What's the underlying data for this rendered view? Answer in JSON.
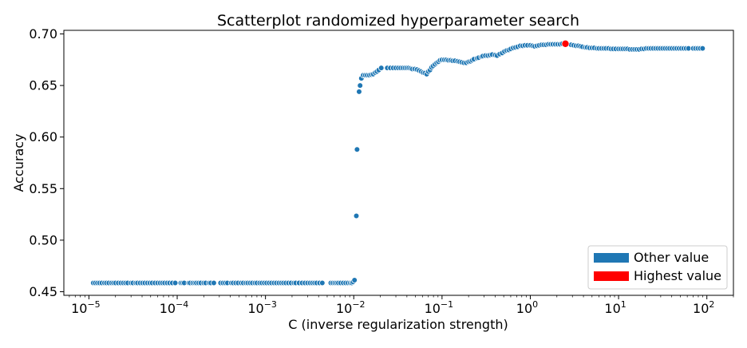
{
  "chart_data": {
    "type": "scatter",
    "title": "Scatterplot randomized hyperparameter search",
    "xlabel": "C (inverse regularization strength)",
    "ylabel": "Accuracy",
    "x_scale": "log",
    "xlim": [
      5.2e-06,
      200
    ],
    "ylim": [
      0.4465,
      0.7035
    ],
    "x_ticks": [
      {
        "value": 1e-05,
        "base": "10",
        "exp": "−5"
      },
      {
        "value": 0.0001,
        "base": "10",
        "exp": "−4"
      },
      {
        "value": 0.001,
        "base": "10",
        "exp": "−3"
      },
      {
        "value": 0.01,
        "base": "10",
        "exp": "−2"
      },
      {
        "value": 0.1,
        "base": "10",
        "exp": "−1"
      },
      {
        "value": 1,
        "base": "10",
        "exp": "0"
      },
      {
        "value": 10,
        "base": "10",
        "exp": "1"
      },
      {
        "value": 100,
        "base": "10",
        "exp": "2"
      }
    ],
    "y_ticks": [
      {
        "value": 0.45,
        "label": "0.45"
      },
      {
        "value": 0.5,
        "label": "0.50"
      },
      {
        "value": 0.55,
        "label": "0.55"
      },
      {
        "value": 0.6,
        "label": "0.60"
      },
      {
        "value": 0.65,
        "label": "0.65"
      },
      {
        "value": 0.7,
        "label": "0.70"
      }
    ],
    "grid": false,
    "legend_position": "bottom-right",
    "legend": [
      {
        "label": "Other value",
        "color": "#1f77b4"
      },
      {
        "label": "Highest value",
        "color": "#ff0000"
      }
    ],
    "series": [
      {
        "name": "Other value",
        "color": "#1f77b4",
        "points": [
          [
            1.12e-05,
            0.4585
          ],
          [
            1.18e-05,
            0.4585
          ],
          [
            1.25e-05,
            0.4585
          ],
          [
            1.32e-05,
            0.4585
          ],
          [
            1.4e-05,
            0.4585
          ],
          [
            1.5e-05,
            0.4585
          ],
          [
            1.58e-05,
            0.4585
          ],
          [
            1.68e-05,
            0.4585
          ],
          [
            1.8e-05,
            0.4585
          ],
          [
            1.9e-05,
            0.4585
          ],
          [
            2e-05,
            0.4585
          ],
          [
            2.15e-05,
            0.4585
          ],
          [
            2.3e-05,
            0.4585
          ],
          [
            2.45e-05,
            0.4585
          ],
          [
            2.6e-05,
            0.4585
          ],
          [
            2.75e-05,
            0.4585
          ],
          [
            3e-05,
            0.4585
          ],
          [
            3.15e-05,
            0.4585
          ],
          [
            3.4e-05,
            0.4585
          ],
          [
            3.55e-05,
            0.4585
          ],
          [
            3.8e-05,
            0.4585
          ],
          [
            4.05e-05,
            0.4585
          ],
          [
            4.3e-05,
            0.4585
          ],
          [
            4.6e-05,
            0.4585
          ],
          [
            4.9e-05,
            0.4585
          ],
          [
            5.2e-05,
            0.4585
          ],
          [
            5.6e-05,
            0.4585
          ],
          [
            6e-05,
            0.4585
          ],
          [
            6.4e-05,
            0.4585
          ],
          [
            6.8e-05,
            0.4585
          ],
          [
            7.2e-05,
            0.4585
          ],
          [
            7.7e-05,
            0.4585
          ],
          [
            8.2e-05,
            0.4585
          ],
          [
            8.8e-05,
            0.4585
          ],
          [
            9.5e-05,
            0.4585
          ],
          [
            0.00011,
            0.4585
          ],
          [
            0.000115,
            0.4585
          ],
          [
            0.00012,
            0.4585
          ],
          [
            0.000135,
            0.4585
          ],
          [
            0.00014,
            0.4585
          ],
          [
            0.00015,
            0.4585
          ],
          [
            0.000158,
            0.4585
          ],
          [
            0.000165,
            0.4585
          ],
          [
            0.000175,
            0.4585
          ],
          [
            0.000185,
            0.4585
          ],
          [
            0.0002,
            0.4585
          ],
          [
            0.00021,
            0.4585
          ],
          [
            0.00023,
            0.4585
          ],
          [
            0.00024,
            0.4585
          ],
          [
            0.00026,
            0.4585
          ],
          [
            0.00031,
            0.4585
          ],
          [
            0.00033,
            0.4585
          ],
          [
            0.00035,
            0.4585
          ],
          [
            0.00037,
            0.4585
          ],
          [
            0.00041,
            0.4585
          ],
          [
            0.00043,
            0.4585
          ],
          [
            0.00046,
            0.4585
          ],
          [
            0.00049,
            0.4585
          ],
          [
            0.00053,
            0.4585
          ],
          [
            0.00056,
            0.4585
          ],
          [
            0.0006,
            0.4585
          ],
          [
            0.00063,
            0.4585
          ],
          [
            0.00067,
            0.4585
          ],
          [
            0.00071,
            0.4585
          ],
          [
            0.00076,
            0.4585
          ],
          [
            0.0008,
            0.4585
          ],
          [
            0.00086,
            0.4585
          ],
          [
            0.00091,
            0.4585
          ],
          [
            0.00097,
            0.4585
          ],
          [
            0.00103,
            0.4585
          ],
          [
            0.0011,
            0.4585
          ],
          [
            0.00117,
            0.4585
          ],
          [
            0.00125,
            0.4585
          ],
          [
            0.00133,
            0.4585
          ],
          [
            0.00142,
            0.4585
          ],
          [
            0.00151,
            0.4585
          ],
          [
            0.0016,
            0.4585
          ],
          [
            0.0017,
            0.4585
          ],
          [
            0.00182,
            0.4585
          ],
          [
            0.00195,
            0.4585
          ],
          [
            0.0021,
            0.4585
          ],
          [
            0.0022,
            0.4585
          ],
          [
            0.0024,
            0.4585
          ],
          [
            0.0026,
            0.4585
          ],
          [
            0.0028,
            0.4585
          ],
          [
            0.003,
            0.4585
          ],
          [
            0.0032,
            0.4585
          ],
          [
            0.0034,
            0.4585
          ],
          [
            0.0036,
            0.4585
          ],
          [
            0.0038,
            0.4585
          ],
          [
            0.0041,
            0.4585
          ],
          [
            0.0044,
            0.4585
          ],
          [
            0.0055,
            0.4585
          ],
          [
            0.0058,
            0.4585
          ],
          [
            0.0061,
            0.4585
          ],
          [
            0.0064,
            0.4585
          ],
          [
            0.0067,
            0.4585
          ],
          [
            0.0071,
            0.4585
          ],
          [
            0.0076,
            0.4585
          ],
          [
            0.0081,
            0.4585
          ],
          [
            0.0086,
            0.4585
          ],
          [
            0.0091,
            0.4585
          ],
          [
            0.0095,
            0.4585
          ],
          [
            0.0098,
            0.4595
          ],
          [
            0.0102,
            0.4612
          ],
          [
            0.0107,
            0.5235
          ],
          [
            0.0109,
            0.588
          ],
          [
            0.0115,
            0.644
          ],
          [
            0.0118,
            0.65
          ],
          [
            0.0122,
            0.657
          ],
          [
            0.0128,
            0.66
          ],
          [
            0.0135,
            0.66
          ],
          [
            0.0142,
            0.66
          ],
          [
            0.015,
            0.66
          ],
          [
            0.0158,
            0.6605
          ],
          [
            0.0166,
            0.661
          ],
          [
            0.0175,
            0.6625
          ],
          [
            0.0183,
            0.6635
          ],
          [
            0.0192,
            0.665
          ],
          [
            0.0205,
            0.667
          ],
          [
            0.024,
            0.667
          ],
          [
            0.026,
            0.667
          ],
          [
            0.028,
            0.667
          ],
          [
            0.03,
            0.667
          ],
          [
            0.032,
            0.667
          ],
          [
            0.034,
            0.667
          ],
          [
            0.036,
            0.667
          ],
          [
            0.038,
            0.667
          ],
          [
            0.04,
            0.667
          ],
          [
            0.042,
            0.667
          ],
          [
            0.044,
            0.6665
          ],
          [
            0.046,
            0.666
          ],
          [
            0.049,
            0.666
          ],
          [
            0.052,
            0.6655
          ],
          [
            0.055,
            0.6645
          ],
          [
            0.058,
            0.6635
          ],
          [
            0.061,
            0.6625
          ],
          [
            0.064,
            0.662
          ],
          [
            0.067,
            0.661
          ],
          [
            0.07,
            0.6635
          ],
          [
            0.073,
            0.665
          ],
          [
            0.076,
            0.6675
          ],
          [
            0.079,
            0.669
          ],
          [
            0.083,
            0.6705
          ],
          [
            0.087,
            0.672
          ],
          [
            0.091,
            0.673
          ],
          [
            0.095,
            0.6745
          ],
          [
            0.1,
            0.675
          ],
          [
            0.106,
            0.675
          ],
          [
            0.112,
            0.675
          ],
          [
            0.118,
            0.6745
          ],
          [
            0.125,
            0.6745
          ],
          [
            0.132,
            0.674
          ],
          [
            0.14,
            0.674
          ],
          [
            0.15,
            0.6735
          ],
          [
            0.158,
            0.673
          ],
          [
            0.167,
            0.6725
          ],
          [
            0.177,
            0.672
          ],
          [
            0.188,
            0.672
          ],
          [
            0.2,
            0.673
          ],
          [
            0.21,
            0.6735
          ],
          [
            0.22,
            0.6745
          ],
          [
            0.23,
            0.6755
          ],
          [
            0.25,
            0.6765
          ],
          [
            0.26,
            0.677
          ],
          [
            0.28,
            0.678
          ],
          [
            0.29,
            0.6785
          ],
          [
            0.31,
            0.679
          ],
          [
            0.33,
            0.679
          ],
          [
            0.35,
            0.6795
          ],
          [
            0.37,
            0.68
          ],
          [
            0.4,
            0.6795
          ],
          [
            0.42,
            0.679
          ],
          [
            0.45,
            0.6805
          ],
          [
            0.48,
            0.6815
          ],
          [
            0.51,
            0.683
          ],
          [
            0.54,
            0.684
          ],
          [
            0.57,
            0.6845
          ],
          [
            0.6,
            0.6855
          ],
          [
            0.64,
            0.6865
          ],
          [
            0.68,
            0.687
          ],
          [
            0.72,
            0.6875
          ],
          [
            0.77,
            0.6885
          ],
          [
            0.82,
            0.6885
          ],
          [
            0.87,
            0.689
          ],
          [
            0.93,
            0.689
          ],
          [
            1.0,
            0.689
          ],
          [
            1.06,
            0.6885
          ],
          [
            1.12,
            0.688
          ],
          [
            1.19,
            0.6885
          ],
          [
            1.26,
            0.689
          ],
          [
            1.34,
            0.6895
          ],
          [
            1.42,
            0.6895
          ],
          [
            1.51,
            0.6895
          ],
          [
            1.6,
            0.69
          ],
          [
            1.7,
            0.69
          ],
          [
            1.8,
            0.69
          ],
          [
            1.92,
            0.69
          ],
          [
            2.04,
            0.69
          ],
          [
            2.17,
            0.69
          ],
          [
            2.3,
            0.6905
          ],
          [
            2.9,
            0.6895
          ],
          [
            3.1,
            0.689
          ],
          [
            3.3,
            0.6885
          ],
          [
            3.5,
            0.6885
          ],
          [
            3.7,
            0.688
          ],
          [
            3.9,
            0.6875
          ],
          [
            4.2,
            0.687
          ],
          [
            4.4,
            0.687
          ],
          [
            4.7,
            0.6865
          ],
          [
            5.0,
            0.6865
          ],
          [
            5.3,
            0.6865
          ],
          [
            5.7,
            0.686
          ],
          [
            6.0,
            0.686
          ],
          [
            6.4,
            0.686
          ],
          [
            6.8,
            0.686
          ],
          [
            7.2,
            0.686
          ],
          [
            7.7,
            0.686
          ],
          [
            8.2,
            0.6855
          ],
          [
            8.7,
            0.6855
          ],
          [
            9.3,
            0.6855
          ],
          [
            10.0,
            0.6855
          ],
          [
            10.6,
            0.6855
          ],
          [
            11.2,
            0.6855
          ],
          [
            11.9,
            0.6855
          ],
          [
            12.6,
            0.6855
          ],
          [
            13.4,
            0.685
          ],
          [
            14.3,
            0.685
          ],
          [
            15.2,
            0.685
          ],
          [
            16.1,
            0.685
          ],
          [
            17.1,
            0.685
          ],
          [
            18.2,
            0.6855
          ],
          [
            19.4,
            0.6855
          ],
          [
            20.6,
            0.686
          ],
          [
            21.9,
            0.686
          ],
          [
            23.2,
            0.686
          ],
          [
            24.7,
            0.686
          ],
          [
            26.3,
            0.686
          ],
          [
            27.9,
            0.686
          ],
          [
            29.7,
            0.686
          ],
          [
            31.6,
            0.686
          ],
          [
            33.6,
            0.686
          ],
          [
            35.7,
            0.686
          ],
          [
            37.9,
            0.686
          ],
          [
            40.3,
            0.686
          ],
          [
            42.9,
            0.686
          ],
          [
            45.6,
            0.686
          ],
          [
            48.5,
            0.686
          ],
          [
            51.5,
            0.686
          ],
          [
            54.8,
            0.686
          ],
          [
            58.2,
            0.686
          ],
          [
            61.9,
            0.686
          ],
          [
            70,
            0.686
          ],
          [
            74.4,
            0.686
          ],
          [
            79.1,
            0.686
          ],
          [
            84.1,
            0.686
          ],
          [
            89.4,
            0.686
          ]
        ]
      },
      {
        "name": "Highest value",
        "color": "#ff0000",
        "points": [
          [
            2.5,
            0.6905
          ]
        ]
      }
    ]
  }
}
